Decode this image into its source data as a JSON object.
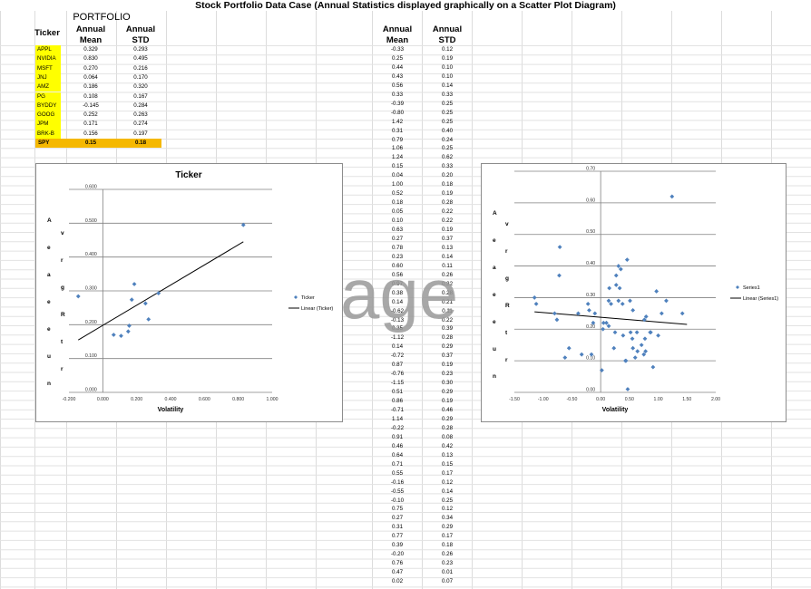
{
  "page_title": "Stock Portfolio Data Case (Annual Statistics displayed graphically on a Scatter Plot Diagram)",
  "portfolio": {
    "heading": "PORTFOLIO",
    "col_ticker": "Ticker",
    "col_mean_1": "Annual",
    "col_mean_2": "Mean",
    "col_std_1": "Annual",
    "col_std_2": "STD",
    "rows": [
      {
        "ticker": "APPL",
        "mean": "0.329",
        "std": "0.293"
      },
      {
        "ticker": "NVIDIA",
        "mean": "0.830",
        "std": "0.495"
      },
      {
        "ticker": "MSFT",
        "mean": "0.270",
        "std": "0.216"
      },
      {
        "ticker": "JNJ",
        "mean": "0.064",
        "std": "0.170"
      },
      {
        "ticker": "AMZ",
        "mean": "0.186",
        "std": "0.320"
      },
      {
        "ticker": "PG",
        "mean": "0.108",
        "std": "0.167"
      },
      {
        "ticker": "BYDDY",
        "mean": "-0.145",
        "std": "0.284"
      },
      {
        "ticker": "GOOG",
        "mean": "0.252",
        "std": "0.263"
      },
      {
        "ticker": "JPM",
        "mean": "0.171",
        "std": "0.274"
      },
      {
        "ticker": "BRK-B",
        "mean": "0.156",
        "std": "0.197"
      }
    ],
    "summary": {
      "ticker": "SPY",
      "mean": "0.15",
      "std": "0.18"
    }
  },
  "random_table": {
    "col_mean_1": "Annual",
    "col_mean_2": "Mean",
    "col_std_1": "Annual",
    "col_std_2": "STD",
    "rows": [
      [
        "-0.33",
        "0.12"
      ],
      [
        "0.25",
        "0.19"
      ],
      [
        "0.44",
        "0.10"
      ],
      [
        "0.43",
        "0.10"
      ],
      [
        "0.56",
        "0.14"
      ],
      [
        "0.33",
        "0.33"
      ],
      [
        "-0.39",
        "0.25"
      ],
      [
        "-0.80",
        "0.25"
      ],
      [
        "1.42",
        "0.25"
      ],
      [
        "0.31",
        "0.40"
      ],
      [
        "0.79",
        "0.24"
      ],
      [
        "1.06",
        "0.25"
      ],
      [
        "1.24",
        "0.62"
      ],
      [
        "0.15",
        "0.33"
      ],
      [
        "0.04",
        "0.20"
      ],
      [
        "1.00",
        "0.18"
      ],
      [
        "0.52",
        "0.19"
      ],
      [
        "0.18",
        "0.28"
      ],
      [
        "0.05",
        "0.22"
      ],
      [
        "0.10",
        "0.22"
      ],
      [
        "0.63",
        "0.19"
      ],
      [
        "0.27",
        "0.37"
      ],
      [
        "0.78",
        "0.13"
      ],
      [
        "0.23",
        "0.14"
      ],
      [
        "0.60",
        "0.11"
      ],
      [
        "0.56",
        "0.26"
      ],
      [
        "0.97",
        "0.32"
      ],
      [
        "0.38",
        "0.28"
      ],
      [
        "0.14",
        "0.21"
      ],
      [
        "-0.62",
        "0.11"
      ],
      [
        "-0.13",
        "0.22"
      ],
      [
        "0.35",
        "0.39"
      ],
      [
        "-1.12",
        "0.28"
      ],
      [
        "0.14",
        "0.29"
      ],
      [
        "-0.72",
        "0.37"
      ],
      [
        "0.87",
        "0.19"
      ],
      [
        "-0.76",
        "0.23"
      ],
      [
        "-1.15",
        "0.30"
      ],
      [
        "0.51",
        "0.29"
      ],
      [
        "0.86",
        "0.19"
      ],
      [
        "-0.71",
        "0.46"
      ],
      [
        "1.14",
        "0.29"
      ],
      [
        "-0.22",
        "0.28"
      ],
      [
        "0.91",
        "0.08"
      ],
      [
        "0.46",
        "0.42"
      ],
      [
        "0.64",
        "0.13"
      ],
      [
        "0.71",
        "0.15"
      ],
      [
        "0.55",
        "0.17"
      ],
      [
        "-0.16",
        "0.12"
      ],
      [
        "-0.55",
        "0.14"
      ],
      [
        "-0.10",
        "0.25"
      ],
      [
        "0.75",
        "0.12"
      ],
      [
        "0.27",
        "0.34"
      ],
      [
        "0.31",
        "0.29"
      ],
      [
        "0.77",
        "0.17"
      ],
      [
        "0.39",
        "0.18"
      ],
      [
        "-0.20",
        "0.26"
      ],
      [
        "0.76",
        "0.23"
      ],
      [
        "0.47",
        "0.01"
      ],
      [
        "0.02",
        "0.07"
      ]
    ]
  },
  "watermark": "age",
  "chart_data": [
    {
      "type": "scatter",
      "title": "Ticker",
      "xlabel": "Volatility",
      "ylabel": "Average Return",
      "xlim": [
        -0.2,
        1.0
      ],
      "ylim": [
        0.0,
        0.6
      ],
      "x_ticks": [
        "-0.200",
        "0.000",
        "0.200",
        "0.400",
        "0.600",
        "0.800",
        "1.000"
      ],
      "y_ticks": [
        "0.000",
        "0.100",
        "0.200",
        "0.300",
        "0.400",
        "0.500",
        "0.600"
      ],
      "grid": true,
      "legend_position": "right",
      "series": [
        {
          "name": "Ticker",
          "color": "#4f81bd",
          "points": [
            [
              -0.145,
              0.284
            ],
            [
              0.064,
              0.17
            ],
            [
              0.108,
              0.167
            ],
            [
              0.156,
              0.197
            ],
            [
              0.171,
              0.274
            ],
            [
              0.186,
              0.32
            ],
            [
              0.252,
              0.263
            ],
            [
              0.27,
              0.216
            ],
            [
              0.329,
              0.293
            ],
            [
              0.83,
              0.495
            ],
            [
              0.15,
              0.18
            ]
          ]
        }
      ],
      "trendline": {
        "name": "Linear (Ticker)",
        "from": [
          -0.145,
          0.155
        ],
        "to": [
          0.83,
          0.445
        ]
      }
    },
    {
      "type": "scatter",
      "title": "",
      "xlabel": "Volatility",
      "ylabel": "Average Return",
      "xlim": [
        -1.5,
        2.0
      ],
      "ylim": [
        0.0,
        0.7
      ],
      "x_ticks": [
        "-1.50",
        "-1.00",
        "-0.50",
        "0.00",
        "0.50",
        "1.00",
        "1.50",
        "2.00"
      ],
      "y_ticks": [
        "0.00",
        "0.10",
        "0.20",
        "0.30",
        "0.40",
        "0.50",
        "0.60",
        "0.70"
      ],
      "grid": true,
      "legend_position": "right",
      "series": [
        {
          "name": "Series1",
          "color": "#4f81bd",
          "points": [
            [
              -0.33,
              0.12
            ],
            [
              0.25,
              0.19
            ],
            [
              0.44,
              0.1
            ],
            [
              0.43,
              0.1
            ],
            [
              0.56,
              0.14
            ],
            [
              0.33,
              0.33
            ],
            [
              -0.39,
              0.25
            ],
            [
              -0.8,
              0.25
            ],
            [
              1.42,
              0.25
            ],
            [
              0.31,
              0.4
            ],
            [
              0.79,
              0.24
            ],
            [
              1.06,
              0.25
            ],
            [
              1.24,
              0.62
            ],
            [
              0.15,
              0.33
            ],
            [
              0.04,
              0.2
            ],
            [
              1.0,
              0.18
            ],
            [
              0.52,
              0.19
            ],
            [
              0.18,
              0.28
            ],
            [
              0.05,
              0.22
            ],
            [
              0.1,
              0.22
            ],
            [
              0.63,
              0.19
            ],
            [
              0.27,
              0.37
            ],
            [
              0.78,
              0.13
            ],
            [
              0.23,
              0.14
            ],
            [
              0.6,
              0.11
            ],
            [
              0.56,
              0.26
            ],
            [
              0.97,
              0.32
            ],
            [
              0.38,
              0.28
            ],
            [
              0.14,
              0.21
            ],
            [
              -0.62,
              0.11
            ],
            [
              -0.13,
              0.22
            ],
            [
              0.35,
              0.39
            ],
            [
              -1.12,
              0.28
            ],
            [
              0.14,
              0.29
            ],
            [
              -0.72,
              0.37
            ],
            [
              0.87,
              0.19
            ],
            [
              -0.76,
              0.23
            ],
            [
              -1.15,
              0.3
            ],
            [
              0.51,
              0.29
            ],
            [
              0.86,
              0.19
            ],
            [
              -0.71,
              0.46
            ],
            [
              1.14,
              0.29
            ],
            [
              -0.22,
              0.28
            ],
            [
              0.91,
              0.08
            ],
            [
              0.46,
              0.42
            ],
            [
              0.64,
              0.13
            ],
            [
              0.71,
              0.15
            ],
            [
              0.55,
              0.17
            ],
            [
              -0.16,
              0.12
            ],
            [
              -0.55,
              0.14
            ],
            [
              -0.1,
              0.25
            ],
            [
              0.75,
              0.12
            ],
            [
              0.27,
              0.34
            ],
            [
              0.31,
              0.29
            ],
            [
              0.77,
              0.17
            ],
            [
              0.39,
              0.18
            ],
            [
              -0.2,
              0.26
            ],
            [
              0.76,
              0.23
            ],
            [
              0.47,
              0.01
            ],
            [
              0.02,
              0.07
            ]
          ]
        }
      ],
      "trendline": {
        "name": "Linear (Series1)",
        "from": [
          -1.15,
          0.255
        ],
        "to": [
          1.5,
          0.215
        ]
      }
    }
  ]
}
